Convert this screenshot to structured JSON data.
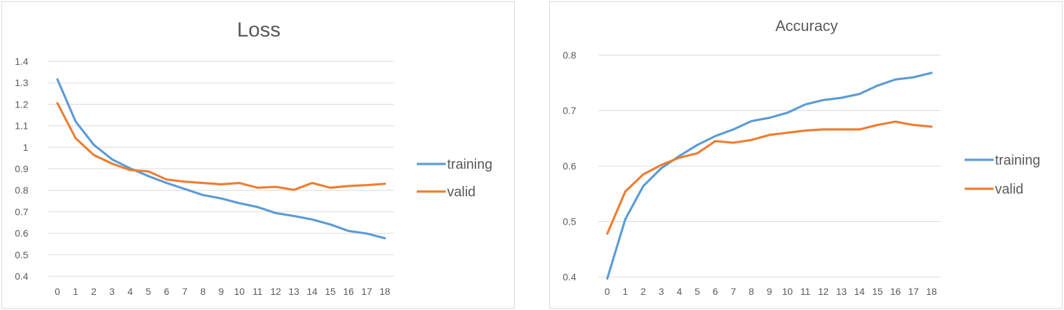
{
  "chart_data": [
    {
      "type": "line",
      "title": "Loss",
      "x": [
        0,
        1,
        2,
        3,
        4,
        5,
        6,
        7,
        8,
        9,
        10,
        11,
        12,
        13,
        14,
        15,
        16,
        17,
        18
      ],
      "ylim": [
        0.4,
        1.4
      ],
      "yticks": [
        "1.4",
        "1.3",
        "1.2",
        "1.1",
        "1",
        "0.9",
        "0.8",
        "0.7",
        "0.6",
        "0.5",
        "0.4"
      ],
      "ytick_values": [
        1.4,
        1.3,
        1.2,
        1.1,
        1.0,
        0.9,
        0.8,
        0.7,
        0.6,
        0.5,
        0.4
      ],
      "grid": true,
      "legend": "right",
      "series": [
        {
          "name": "training",
          "color": "#5B9BD5",
          "values": [
            1.316,
            1.12,
            1.012,
            0.944,
            0.902,
            0.866,
            0.834,
            0.806,
            0.778,
            0.762,
            0.74,
            0.722,
            0.694,
            0.68,
            0.664,
            0.641,
            0.611,
            0.599,
            0.577
          ]
        },
        {
          "name": "valid",
          "color": "#ED7D31",
          "values": [
            1.205,
            1.042,
            0.964,
            0.924,
            0.894,
            0.888,
            0.85,
            0.84,
            0.834,
            0.828,
            0.834,
            0.812,
            0.816,
            0.802,
            0.834,
            0.812,
            0.82,
            0.824,
            0.83
          ]
        }
      ]
    },
    {
      "type": "line",
      "title": "Accuracy",
      "x": [
        0,
        1,
        2,
        3,
        4,
        5,
        6,
        7,
        8,
        9,
        10,
        11,
        12,
        13,
        14,
        15,
        16,
        17,
        18
      ],
      "ylim": [
        0.4,
        0.8
      ],
      "yticks": [
        "0.8",
        "0.7",
        "0.6",
        "0.5",
        "0.4"
      ],
      "ytick_values": [
        0.8,
        0.7,
        0.6,
        0.5,
        0.4
      ],
      "grid": true,
      "legend": "right",
      "series": [
        {
          "name": "training",
          "color": "#5B9BD5",
          "values": [
            0.397,
            0.504,
            0.564,
            0.596,
            0.618,
            0.638,
            0.654,
            0.666,
            0.681,
            0.687,
            0.696,
            0.711,
            0.719,
            0.723,
            0.73,
            0.745,
            0.756,
            0.76,
            0.768
          ]
        },
        {
          "name": "valid",
          "color": "#ED7D31",
          "values": [
            0.478,
            0.554,
            0.585,
            0.602,
            0.615,
            0.623,
            0.645,
            0.642,
            0.647,
            0.656,
            0.66,
            0.664,
            0.666,
            0.666,
            0.666,
            0.674,
            0.68,
            0.674,
            0.671
          ]
        }
      ]
    }
  ]
}
